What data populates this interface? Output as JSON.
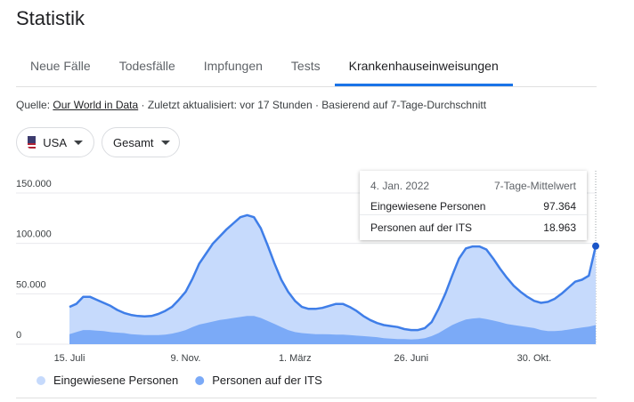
{
  "title": "Statistik",
  "tabs": [
    "Neue Fälle",
    "Todesfälle",
    "Impfungen",
    "Tests",
    "Krankenhauseinweisungen"
  ],
  "selected_tab": 4,
  "source": {
    "prefix": "Quelle:",
    "link": "Our World in Data",
    "suffix": "· Zuletzt aktualisiert: vor 17 Stunden · Basierend auf 7-Tage-Durchschnitt"
  },
  "filters": [
    "USA",
    "Gesamt"
  ],
  "tooltip": {
    "date": "4. Jan. 2022",
    "caption": "7-Tage-Mittelwert",
    "rows": [
      {
        "name": "Eingewiesene Personen",
        "value": "97.364"
      },
      {
        "name": "Personen auf der ITS",
        "value": "18.963"
      }
    ]
  },
  "chart_data": {
    "type": "area",
    "categories": [
      "15. Juli",
      null,
      null,
      null,
      null,
      null,
      null,
      null,
      null,
      null,
      null,
      null,
      null,
      null,
      null,
      null,
      null,
      "9. Nov.",
      null,
      null,
      null,
      null,
      null,
      null,
      null,
      null,
      null,
      null,
      null,
      null,
      null,
      null,
      null,
      "1. März",
      null,
      null,
      null,
      null,
      null,
      null,
      null,
      null,
      null,
      null,
      null,
      null,
      null,
      null,
      null,
      null,
      "26. Juni",
      null,
      null,
      null,
      null,
      null,
      null,
      null,
      null,
      null,
      null,
      null,
      null,
      null,
      null,
      null,
      null,
      null,
      "30. Okt.",
      null,
      null,
      null,
      null,
      null,
      null,
      null,
      null,
      null
    ],
    "series": [
      {
        "name": "Eingewiesene Personen",
        "color": "#c6dafc",
        "line_color": "#3f7ee8",
        "values": [
          37000,
          40000,
          47000,
          47000,
          44000,
          41000,
          38000,
          34000,
          31000,
          29000,
          28000,
          27500,
          28000,
          30000,
          33000,
          37000,
          44000,
          52000,
          65000,
          80000,
          90000,
          100000,
          107000,
          114000,
          120000,
          126000,
          128000,
          126000,
          115000,
          98000,
          80000,
          64000,
          52000,
          43000,
          37000,
          35000,
          35000,
          36000,
          38000,
          40000,
          40000,
          37000,
          33000,
          28000,
          24000,
          21000,
          19000,
          18000,
          17000,
          15000,
          14000,
          14000,
          16000,
          22000,
          35000,
          50000,
          68000,
          85000,
          95000,
          97000,
          97000,
          94000,
          85000,
          75000,
          66000,
          58000,
          52000,
          47000,
          43000,
          41000,
          42000,
          45000,
          50000,
          56000,
          62000,
          64000,
          68000,
          97364
        ]
      },
      {
        "name": "Personen auf der ITS",
        "color": "#7baaf7",
        "values": [
          10000,
          12000,
          14000,
          14000,
          13500,
          13000,
          12000,
          11500,
          11000,
          10000,
          9500,
          9000,
          9000,
          9000,
          9500,
          10500,
          12000,
          14000,
          17000,
          19500,
          21000,
          22500,
          24000,
          25000,
          26000,
          27000,
          28000,
          28000,
          26000,
          23000,
          20000,
          17000,
          14000,
          12000,
          11000,
          10500,
          10000,
          10000,
          9800,
          9500,
          9500,
          9000,
          8500,
          8000,
          7500,
          7000,
          6000,
          5500,
          5000,
          5000,
          4800,
          5000,
          6000,
          8000,
          11000,
          15000,
          19000,
          22000,
          24500,
          25500,
          26000,
          25000,
          23500,
          22000,
          20000,
          19000,
          18000,
          17000,
          16000,
          14000,
          13000,
          13000,
          13500,
          14500,
          15500,
          16500,
          17500,
          18963
        ]
      }
    ],
    "ylim": [
      0,
      150000
    ],
    "yticks": [
      0,
      {
        "value": 50000,
        "label": "50.000"
      },
      {
        "value": 100000,
        "label": "100.000"
      },
      {
        "value": 150000,
        "label": "150.000"
      }
    ],
    "grid": true
  }
}
